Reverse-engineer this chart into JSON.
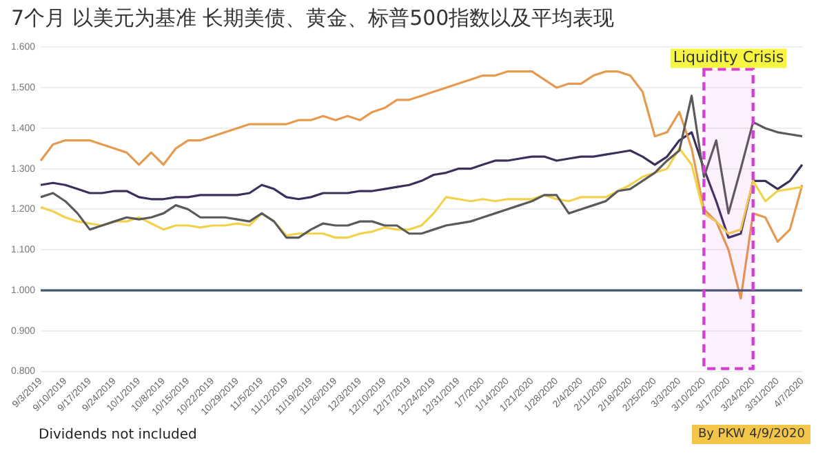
{
  "chart_data": {
    "type": "line",
    "title": "7个月 以美元为基准 长期美债、黄金、标普500指数以及平均表现",
    "categories": [
      "9/3/2019",
      null,
      "9/10/2019",
      null,
      "9/17/2019",
      null,
      "9/24/2019",
      null,
      "10/1/2019",
      null,
      "10/8/2019",
      null,
      "10/15/2019",
      null,
      "10/22/2019",
      null,
      "10/29/2019",
      null,
      "11/5/2019",
      null,
      "11/12/2019",
      null,
      "11/19/2019",
      null,
      "11/26/2019",
      null,
      "12/3/2019",
      null,
      "12/10/2019",
      null,
      "12/17/2019",
      null,
      "12/24/2019",
      null,
      "12/31/2019",
      null,
      "1/7/2020",
      null,
      "1/14/2020",
      null,
      "1/21/2020",
      null,
      "1/28/2020",
      null,
      "2/4/2020",
      null,
      "2/11/2020",
      null,
      "2/18/2020",
      null,
      "2/25/2020",
      null,
      "3/3/2020",
      null,
      "3/10/2020",
      null,
      "3/17/2020",
      null,
      "3/24/2020",
      null,
      "3/31/2020",
      null,
      "4/7/2020"
    ],
    "series": [
      {
        "color": "#3f5670",
        "values": [
          1,
          1,
          1,
          1,
          1,
          1,
          1,
          1,
          1,
          1,
          1,
          1,
          1,
          1,
          1,
          1,
          1,
          1,
          1,
          1,
          1,
          1,
          1,
          1,
          1,
          1,
          1,
          1,
          1,
          1,
          1,
          1,
          1,
          1,
          1,
          1,
          1,
          1,
          1,
          1,
          1,
          1,
          1,
          1,
          1,
          1,
          1,
          1,
          1,
          1,
          1,
          1,
          1,
          1,
          1,
          1,
          1,
          1,
          1,
          1,
          1,
          1,
          1
        ]
      },
      {
        "color": "#5a5a5a",
        "values": [
          1.23,
          1.24,
          1.22,
          1.19,
          1.15,
          1.16,
          1.17,
          1.18,
          1.175,
          1.18,
          1.19,
          1.21,
          1.2,
          1.18,
          1.18,
          1.18,
          1.175,
          1.17,
          1.19,
          1.17,
          1.13,
          1.13,
          1.15,
          1.165,
          1.16,
          1.16,
          1.17,
          1.17,
          1.16,
          1.16,
          1.14,
          1.14,
          1.15,
          1.16,
          1.165,
          1.17,
          1.18,
          1.19,
          1.2,
          1.21,
          1.22,
          1.235,
          1.235,
          1.19,
          1.2,
          1.21,
          1.22,
          1.245,
          1.25,
          1.27,
          1.29,
          1.32,
          1.345,
          1.48,
          1.28,
          1.37,
          1.19,
          1.3,
          1.415,
          1.4,
          1.39,
          1.385,
          1.38
        ]
      },
      {
        "color": "#f2d14c",
        "values": [
          1.205,
          1.195,
          1.18,
          1.17,
          1.165,
          1.16,
          1.17,
          1.17,
          1.18,
          1.165,
          1.15,
          1.16,
          1.16,
          1.155,
          1.16,
          1.16,
          1.165,
          1.16,
          1.19,
          1.17,
          1.135,
          1.14,
          1.14,
          1.14,
          1.13,
          1.13,
          1.14,
          1.145,
          1.155,
          1.15,
          1.15,
          1.16,
          1.19,
          1.23,
          1.225,
          1.22,
          1.225,
          1.22,
          1.225,
          1.225,
          1.225,
          1.235,
          1.225,
          1.22,
          1.23,
          1.23,
          1.23,
          1.245,
          1.26,
          1.28,
          1.29,
          1.3,
          1.35,
          1.31,
          1.19,
          1.17,
          1.14,
          1.15,
          1.27,
          1.22,
          1.245,
          1.25,
          1.255
        ]
      },
      {
        "color": "#e69a50",
        "values": [
          1.32,
          1.36,
          1.37,
          1.37,
          1.37,
          1.36,
          1.35,
          1.34,
          1.31,
          1.34,
          1.31,
          1.35,
          1.37,
          1.37,
          1.38,
          1.39,
          1.4,
          1.41,
          1.41,
          1.41,
          1.41,
          1.42,
          1.42,
          1.43,
          1.42,
          1.43,
          1.42,
          1.44,
          1.45,
          1.47,
          1.47,
          1.48,
          1.49,
          1.5,
          1.51,
          1.52,
          1.53,
          1.53,
          1.54,
          1.54,
          1.54,
          1.52,
          1.5,
          1.51,
          1.51,
          1.53,
          1.54,
          1.54,
          1.53,
          1.49,
          1.38,
          1.39,
          1.44,
          1.35,
          1.2,
          1.17,
          1.1,
          0.98,
          1.19,
          1.18,
          1.12,
          1.15,
          1.26
        ]
      },
      {
        "color": "#3c2f5c",
        "values": [
          1.26,
          1.265,
          1.26,
          1.25,
          1.24,
          1.24,
          1.245,
          1.245,
          1.23,
          1.225,
          1.225,
          1.23,
          1.23,
          1.235,
          1.235,
          1.235,
          1.235,
          1.24,
          1.26,
          1.25,
          1.23,
          1.225,
          1.23,
          1.24,
          1.24,
          1.24,
          1.245,
          1.245,
          1.25,
          1.255,
          1.26,
          1.27,
          1.285,
          1.29,
          1.3,
          1.3,
          1.31,
          1.32,
          1.32,
          1.325,
          1.33,
          1.33,
          1.32,
          1.325,
          1.33,
          1.33,
          1.335,
          1.34,
          1.345,
          1.33,
          1.31,
          1.33,
          1.37,
          1.39,
          1.3,
          1.22,
          1.13,
          1.14,
          1.27,
          1.27,
          1.25,
          1.27,
          1.31
        ]
      }
    ],
    "ylim": [
      0.8,
      1.6
    ],
    "yticks": [
      {
        "value": 0.8,
        "label": "0.800"
      },
      {
        "value": 0.9,
        "label": "0.900"
      },
      {
        "value": 1,
        "label": "1.000"
      },
      {
        "value": 1.1,
        "label": "1.100"
      },
      {
        "value": 1.2,
        "label": "1.200"
      },
      {
        "value": 1.3,
        "label": "1.300"
      },
      {
        "value": 1.4,
        "label": "1.400"
      },
      {
        "value": 1.5,
        "label": "1.500"
      },
      {
        "value": 1.6,
        "label": "1.600"
      }
    ],
    "grid": "y",
    "legend": false,
    "marker": "none",
    "line_style": "solid",
    "bands": [
      {
        "axis": "x",
        "from": "3/10/2020",
        "to": "3/24/2020",
        "label": "Liquidity Crisis",
        "color": "#d63fd6"
      }
    ],
    "annotations": [
      "Dividends not included",
      "By PKW 4/9/2020"
    ]
  }
}
